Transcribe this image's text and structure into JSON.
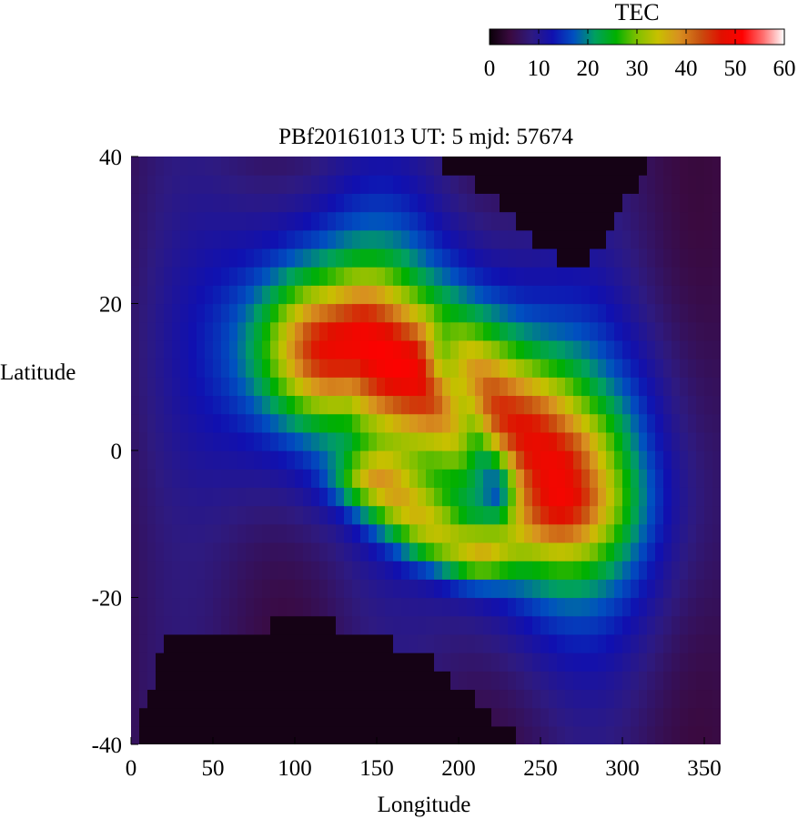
{
  "chart_data": {
    "type": "heatmap",
    "title": "PBf20161013  UT: 5  mjd: 57674",
    "xlabel": "Longitude",
    "ylabel": "Latitude",
    "xlim": [
      0,
      360
    ],
    "ylim": [
      -40,
      40
    ],
    "x_ticks": [
      0,
      50,
      100,
      150,
      200,
      250,
      300,
      350
    ],
    "y_ticks": [
      -40,
      -20,
      0,
      20,
      40
    ],
    "grid": 5,
    "colorbar": {
      "title": "TEC",
      "range": [
        0,
        60
      ],
      "ticks": [
        0,
        10,
        20,
        30,
        40,
        50,
        60
      ],
      "colors": [
        "#0a0008",
        "#3a0a40",
        "#2e1a80",
        "#1010b0",
        "#0050c0",
        "#00a060",
        "#00b000",
        "#80c000",
        "#c8c000",
        "#d89020",
        "#c85010",
        "#e01000",
        "#ff0000",
        "#ff7070",
        "#ffffff"
      ]
    },
    "features": {
      "north_boundary": [
        [
          0,
          41
        ],
        [
          20,
          41
        ],
        [
          40,
          41
        ],
        [
          50,
          40
        ],
        [
          60,
          40
        ],
        [
          80,
          40
        ],
        [
          100,
          40
        ],
        [
          120,
          40
        ],
        [
          140,
          40
        ],
        [
          160,
          40
        ],
        [
          180,
          40
        ],
        [
          190,
          39
        ],
        [
          200,
          37
        ],
        [
          210,
          36
        ],
        [
          220,
          35
        ],
        [
          230,
          33
        ],
        [
          240,
          30
        ],
        [
          250,
          28
        ],
        [
          260,
          26
        ],
        [
          270,
          25
        ],
        [
          280,
          26
        ],
        [
          290,
          29
        ],
        [
          300,
          33
        ],
        [
          310,
          37
        ],
        [
          320,
          41
        ],
        [
          360,
          41
        ]
      ],
      "south_boundary": [
        [
          0,
          -41
        ],
        [
          20,
          -26
        ],
        [
          40,
          -26
        ],
        [
          50,
          -26
        ],
        [
          60,
          -25
        ],
        [
          70,
          -25
        ],
        [
          80,
          -24
        ],
        [
          90,
          -23
        ],
        [
          100,
          -23
        ],
        [
          110,
          -23
        ],
        [
          120,
          -23
        ],
        [
          130,
          -24
        ],
        [
          140,
          -25
        ],
        [
          150,
          -25
        ],
        [
          160,
          -26
        ],
        [
          170,
          -27
        ],
        [
          180,
          -28
        ],
        [
          190,
          -30
        ],
        [
          200,
          -32
        ],
        [
          210,
          -34
        ],
        [
          220,
          -36
        ],
        [
          230,
          -38
        ],
        [
          240,
          -40
        ],
        [
          250,
          -41
        ],
        [
          360,
          -41
        ]
      ],
      "ridge_points": [
        [
          150,
          -4
        ],
        [
          160,
          -6
        ],
        [
          170,
          -8
        ],
        [
          180,
          -10
        ],
        [
          190,
          -12
        ],
        [
          200,
          -13
        ],
        [
          210,
          -14
        ]
      ],
      "band_centers": [
        [
          120,
          14
        ],
        [
          140,
          15
        ],
        [
          160,
          12
        ],
        [
          180,
          10
        ],
        [
          200,
          8
        ],
        [
          220,
          5
        ],
        [
          240,
          2
        ],
        [
          255,
          -2
        ],
        [
          260,
          -6
        ]
      ]
    }
  }
}
